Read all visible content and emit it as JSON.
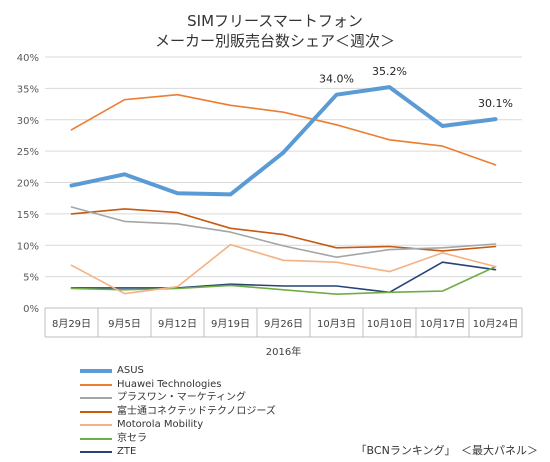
{
  "chart_data": {
    "type": "line",
    "title_lines": [
      "SIMフリースマートフォン",
      "メーカー別販売台数シェア＜週次＞"
    ],
    "xlabel": "2016年",
    "categories": [
      "8月29日",
      "9月5日",
      "9月12日",
      "9月19日",
      "9月26日",
      "10月3日",
      "10月10日",
      "10月17日",
      "10月24日"
    ],
    "yticks": [
      "0%",
      "5%",
      "10%",
      "15%",
      "20%",
      "25%",
      "30%",
      "35%",
      "40%"
    ],
    "ylim": [
      0,
      40
    ],
    "grid": true,
    "legend_position": "bottom-left",
    "series": [
      {
        "name": "ASUS",
        "color": "#5b9bd5",
        "width": 4,
        "values": [
          19.5,
          21.3,
          18.3,
          18.1,
          24.8,
          34.0,
          35.2,
          29.0,
          30.1
        ]
      },
      {
        "name": "Huawei Technologies",
        "color": "#ed7d31",
        "width": 1.6,
        "values": [
          28.4,
          33.2,
          34.0,
          32.3,
          31.2,
          29.2,
          26.8,
          25.8,
          22.8
        ]
      },
      {
        "name": "プラスワン・マーケティング",
        "color": "#a5a5a5",
        "width": 1.6,
        "values": [
          16.1,
          13.8,
          13.4,
          12.1,
          9.9,
          8.1,
          9.3,
          9.6,
          10.2
        ]
      },
      {
        "name": "富士通コネクテッドテクノロジーズ",
        "color": "#c55a11",
        "width": 1.6,
        "values": [
          15.0,
          15.8,
          15.2,
          12.7,
          11.7,
          9.6,
          9.8,
          9.1,
          9.8
        ]
      },
      {
        "name": "Motorola Mobility",
        "color": "#f4b183",
        "width": 1.6,
        "values": [
          6.8,
          2.3,
          3.4,
          10.1,
          7.6,
          7.3,
          5.8,
          8.8,
          6.6
        ]
      },
      {
        "name": "京セラ",
        "color": "#70ad47",
        "width": 1.6,
        "values": [
          3.1,
          2.9,
          3.1,
          3.6,
          2.9,
          2.2,
          2.5,
          2.7,
          6.6
        ]
      },
      {
        "name": "ZTE",
        "color": "#264478",
        "width": 1.6,
        "values": [
          3.2,
          3.2,
          3.2,
          3.8,
          3.5,
          3.5,
          2.5,
          7.3,
          6.1
        ]
      }
    ],
    "data_labels": [
      {
        "series": 0,
        "index": 5,
        "text": "34.0%"
      },
      {
        "series": 0,
        "index": 6,
        "text": "35.2%"
      },
      {
        "series": 0,
        "index": 8,
        "text": "30.1%"
      }
    ]
  },
  "source_text": "「BCNランキング」　＜最大パネル＞"
}
